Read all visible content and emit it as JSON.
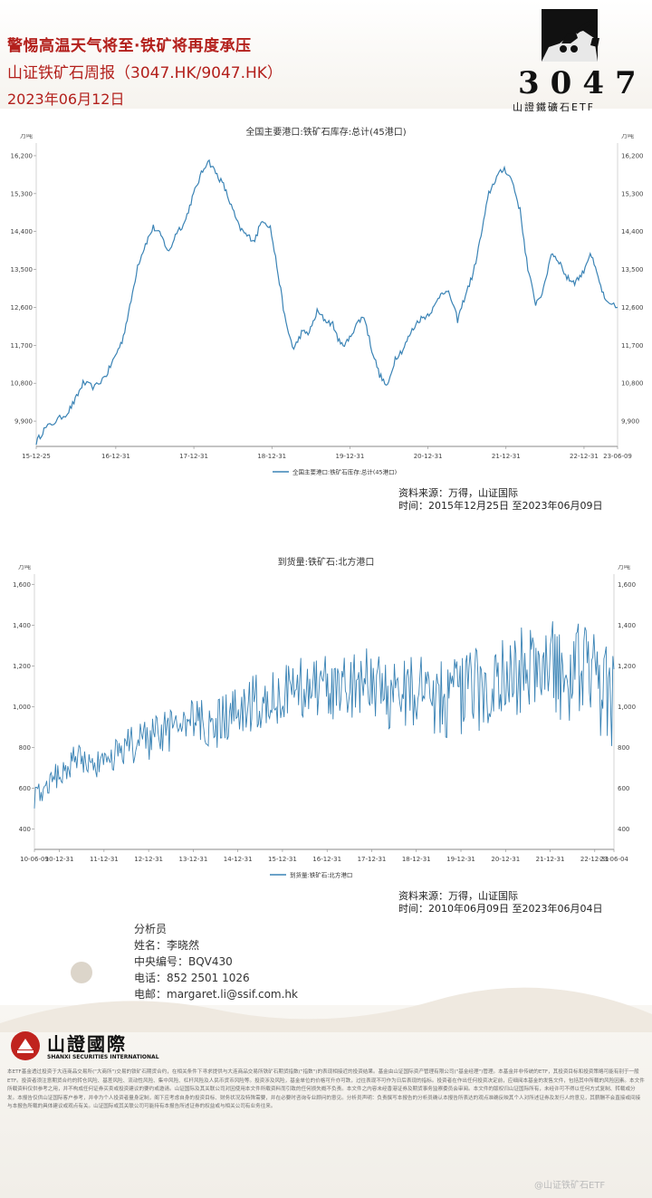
{
  "header": {
    "headline": "警惕高温天气将至·铁矿将再度承压",
    "report_name": "山证铁矿石周报（3047.HK/9047.HK）",
    "date": "2023年06月12日",
    "logo_code": "3047",
    "logo_sub": "山證鐵礦石ETF"
  },
  "charts": [
    {
      "title": "全国主要港口:铁矿石库存:总计(45港口)",
      "unit_left": "万吨",
      "unit_right": "万吨",
      "legend": "全国主要港口:铁矿石库存:总计(45港口)",
      "source": "资料来源：万得，山证国际",
      "time": "时间：2015年12月25日 至2023年06月09日"
    },
    {
      "title": "到货量:铁矿石:北方港口",
      "unit_left": "万吨",
      "unit_right": "万吨",
      "legend": "到货量:铁矿石:北方港口",
      "source": "资料来源：万得，山证国际",
      "time": "时间：2010年06月09日 至2023年06月04日"
    }
  ],
  "chart_data": [
    {
      "type": "line",
      "title": "全国主要港口:铁矿石库存:总计(45港口)",
      "ylabel": "万吨",
      "ylim": [
        9300,
        16500
      ],
      "yticks": [
        "9,900",
        "10,800",
        "11,700",
        "12,600",
        "13,500",
        "14,400",
        "15,300",
        "16,200"
      ],
      "ytick_values": [
        9900,
        10800,
        11700,
        12600,
        13500,
        14400,
        15300,
        16200
      ],
      "xticks": [
        "15-12-25",
        "16-12-31",
        "17-12-31",
        "18-12-31",
        "19-12-31",
        "20-12-31",
        "21-12-31",
        "22-12-31",
        "23-06-09"
      ],
      "xtick_pos": [
        0,
        1.02,
        2.02,
        3.02,
        4.02,
        5.02,
        6.02,
        7.02,
        7.45
      ],
      "grid": false,
      "series": [
        {
          "name": "全国主要港口:铁矿石库存:总计(45港口)",
          "color": "#3a83b5",
          "x": [
            0,
            0.1,
            0.25,
            0.4,
            0.5,
            0.6,
            0.75,
            0.9,
            1.0,
            1.1,
            1.2,
            1.3,
            1.4,
            1.5,
            1.6,
            1.7,
            1.8,
            1.9,
            2.0,
            2.1,
            2.2,
            2.3,
            2.4,
            2.5,
            2.6,
            2.7,
            2.8,
            2.9,
            3.0,
            3.1,
            3.2,
            3.3,
            3.4,
            3.5,
            3.6,
            3.7,
            3.8,
            3.9,
            4.0,
            4.1,
            4.2,
            4.3,
            4.4,
            4.5,
            4.6,
            4.7,
            4.8,
            4.9,
            5.0,
            5.1,
            5.2,
            5.3,
            5.4,
            5.5,
            5.6,
            5.7,
            5.8,
            5.9,
            6.0,
            6.1,
            6.2,
            6.3,
            6.4,
            6.5,
            6.6,
            6.7,
            6.8,
            6.9,
            7.0,
            7.1,
            7.2,
            7.3,
            7.45
          ],
          "values": [
            9400,
            9700,
            9900,
            10100,
            10400,
            10800,
            10700,
            11000,
            11400,
            11800,
            12600,
            13600,
            14100,
            14500,
            14300,
            13900,
            14400,
            14600,
            15200,
            15700,
            16100,
            15800,
            15500,
            15000,
            14500,
            14300,
            14200,
            14700,
            14500,
            13400,
            12200,
            11600,
            12000,
            12000,
            12500,
            12300,
            12200,
            11700,
            11800,
            12200,
            12400,
            11600,
            11000,
            10700,
            11400,
            11600,
            12000,
            12300,
            12400,
            12600,
            13000,
            12900,
            12300,
            12900,
            13400,
            14300,
            15300,
            15700,
            15900,
            15600,
            14900,
            13500,
            12700,
            13000,
            13900,
            13700,
            13300,
            13200,
            13400,
            13900,
            13300,
            12700,
            12600
          ]
        }
      ]
    },
    {
      "type": "line",
      "title": "到货量:铁矿石:北方港口",
      "ylabel": "万吨",
      "ylim": [
        300,
        1650
      ],
      "yticks": [
        "400",
        "600",
        "800",
        "1,000",
        "1,200",
        "1,400",
        "1,600"
      ],
      "ytick_values": [
        400,
        600,
        800,
        1000,
        1200,
        1400,
        1600
      ],
      "xticks": [
        "10-06-09",
        "10-12-31",
        "11-12-31",
        "12-12-31",
        "13-12-31",
        "14-12-31",
        "15-12-31",
        "16-12-31",
        "17-12-31",
        "18-12-31",
        "19-12-31",
        "20-12-31",
        "21-12-31",
        "22-12-31",
        "23-06-04"
      ],
      "xtick_pos": [
        0,
        0.56,
        1.56,
        2.56,
        3.56,
        4.56,
        5.56,
        6.56,
        7.56,
        8.56,
        9.56,
        10.56,
        11.56,
        12.56,
        12.99
      ],
      "grid": false,
      "series": [
        {
          "name": "到货量:铁矿石:北方港口",
          "color": "#3a83b5",
          "x": [
            0,
            0.5,
            1,
            1.5,
            2,
            2.5,
            3,
            3.5,
            4,
            4.5,
            5,
            5.5,
            6,
            6.5,
            7,
            7.5,
            8,
            8.5,
            9,
            9.5,
            10,
            10.5,
            11,
            11.5,
            12,
            12.5,
            12.99
          ],
          "values": [
            560,
            660,
            760,
            690,
            800,
            830,
            880,
            920,
            910,
            960,
            1030,
            1040,
            1100,
            1110,
            1080,
            1130,
            1060,
            1080,
            1060,
            1040,
            1090,
            1130,
            1180,
            1200,
            1160,
            1180,
            980
          ]
        }
      ]
    }
  ],
  "analyst": {
    "heading": "分析员",
    "name": "姓名：李晓然",
    "ce_number": "中央编号：BQV430",
    "phone": "电话：852 2501 1026",
    "email": "电邮：margaret.li@ssif.com.hk"
  },
  "footer": {
    "company_cn": "山證國際",
    "company_en": "SHANXI SECURITIES INTERNATIONAL",
    "disclaimer": "本ETF基金透过投资于大连商品交易所(\"大商所\")交易的铁矿石期货合约，在相关条件下寻求提供与大连商品交易所铁矿石期货指数(\"指数\")的表现相接近的投资结果。基金由山证国际资产管理有限公司(\"基金经理\")管理。本基金并非传统的ETF，其投资目标和投资策略可能有别于一般ETF。投资者须注意期货合约的转仓风险、基差风险、流动性风险、集中风险、杠杆风险及人民币货币风险等。投资涉及风险，基金单位的价格可升亦可跌，过往表现不可作为日后表现的指标。投资者在作出任何投资决定前，应细阅本基金的发售文件，包括其中所载的风险因素。本文件所载资料仅供参考之用，并不构成任何证券买卖或投资建议的要约或邀请。山证国际及其关联公司对因使用本文件所载资料而引致的任何损失概不负责。本文件之内容未经香港证券及期货事务监察委员会审阅。本文件的版权归山证国际所有，未经许可不得以任何方式复制、转载或分发。本报告仅供山证国际客户参考，并非为个人投资者量身定制，阁下应考虑自身的投资目标、财务状况及特殊需要，并在必要时咨询专业顾问的意见。分析员声明：负责撰写本报告的分析员确认本报告所表达的观点准确反映其个人对所述证券及发行人的意见，其薪酬不会直接或间接与本报告所载的具体建议或观点有关。山证国际或其关联公司可能持有本报告所述证券的权益或与相关公司有业务往来。",
    "watermark": "@山证铁矿石ETF"
  }
}
